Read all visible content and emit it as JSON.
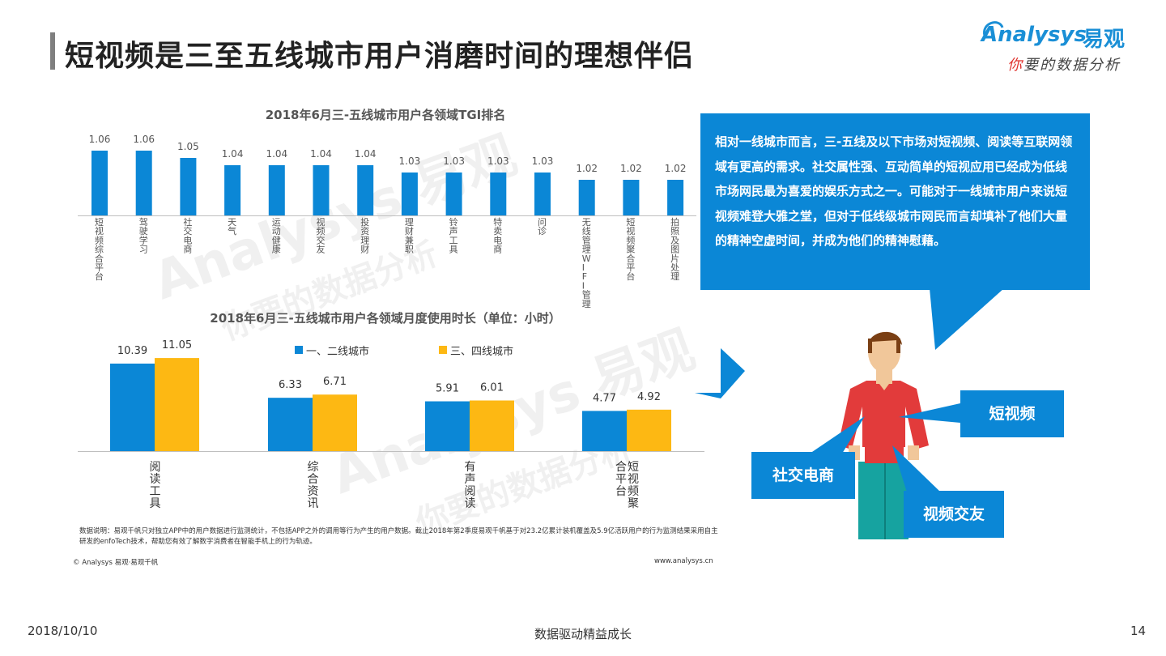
{
  "header": {
    "title": "短视频是三至五线城市用户消磨时间的理想伴侣",
    "logo": {
      "wordmark": "Analysys",
      "brand_cn": "易观",
      "tagline_lead": "你",
      "tagline_rest": "要的数据分析"
    }
  },
  "watermark": {
    "wordmark": "Analysys 易观",
    "tagline": "你要的数据分析"
  },
  "chart_data": [
    {
      "type": "bar",
      "title": "2018年6月三-五线城市用户各领域TGI排名",
      "categories": [
        "短视频综合平台",
        "驾驶学习",
        "社交电商",
        "天气",
        "运动健康",
        "视频交友",
        "投资理财",
        "理财兼职",
        "铃声工具",
        "特卖电商",
        "问诊",
        "无线管理WIFI管理",
        "短视频聚合平台",
        "拍照及图片处理"
      ],
      "values": [
        1.06,
        1.06,
        1.05,
        1.04,
        1.04,
        1.04,
        1.04,
        1.03,
        1.03,
        1.03,
        1.03,
        1.02,
        1.02,
        1.02
      ],
      "value_labels": [
        "1.06",
        "1.06",
        "1.05",
        "1.04",
        "1.04",
        "1.04",
        "1.04",
        "1.03",
        "1.03",
        "1.03",
        "1.03",
        "1.02",
        "1.02",
        "1.02"
      ],
      "color": "#0b87d6",
      "grid": false
    },
    {
      "type": "bar",
      "title": "2018年6月三-五线城市用户各领域月度使用时长（单位：小时）",
      "categories": [
        "阅读工具",
        "综合资讯",
        "有声阅读",
        "短视频聚合平台"
      ],
      "series": [
        {
          "name": "一、二线城市",
          "values": [
            10.39,
            6.33,
            5.91,
            4.77
          ],
          "labels": [
            "10.39",
            "6.33",
            "5.91",
            "4.77"
          ],
          "color": "#0b87d6"
        },
        {
          "name": "三、四线城市",
          "values": [
            11.05,
            6.71,
            6.01,
            4.92
          ],
          "labels": [
            "11.05",
            "6.71",
            "6.01",
            "4.92"
          ],
          "color": "#fdb813"
        }
      ],
      "legend": "top-center",
      "grid": false
    }
  ],
  "callout": {
    "text": "相对一线城市而言，三-五线及以下市场对短视频、阅读等互联网领域有更高的需求。社交属性强、互动简单的短视应用已经成为低线市场网民最为喜爱的娱乐方式之一。可能对于一线城市用户来说短视频难登大雅之堂，但对于低线级城市网民而言却填补了他们大量的精神空虚时间，并成为他们的精神慰藉。",
    "color": "#0b87d6"
  },
  "figure_labels": {
    "short_video": "短视频",
    "social_commerce": "社交电商",
    "video_dating": "视频交友"
  },
  "notes": {
    "data_note": "数据说明：易观千帆只对独立APP中的用户数据进行监测统计，不包括APP之外的调用等行为产生的用户数据。截止2018年第2季度易观千帆基于对23.2亿累计装机覆盖及5.9亿活跃用户的行为监测结果采用自主研发的enfoTech技术，帮助您有效了解数字消费者在智能手机上的行为轨迹。",
    "copyright": "© Analysys 易观·易观千帆",
    "website": "www.analysys.cn"
  },
  "footer": {
    "date": "2018/10/10",
    "slogan": "数据驱动精益成长",
    "page": "14"
  }
}
